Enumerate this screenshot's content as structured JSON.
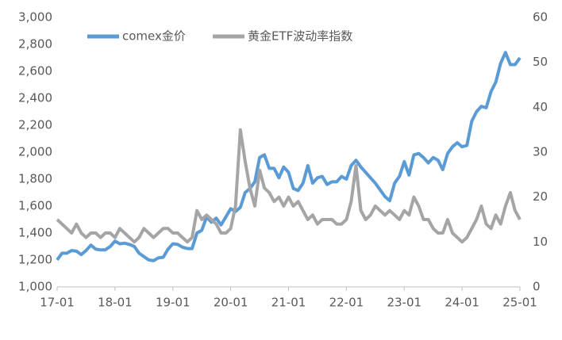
{
  "chart_data": {
    "type": "line",
    "x": [
      "17-01",
      "17-02",
      "17-03",
      "17-04",
      "17-05",
      "17-06",
      "17-07",
      "17-08",
      "17-09",
      "17-10",
      "17-11",
      "17-12",
      "18-01",
      "18-02",
      "18-03",
      "18-04",
      "18-05",
      "18-06",
      "18-07",
      "18-08",
      "18-09",
      "18-10",
      "18-11",
      "18-12",
      "19-01",
      "19-02",
      "19-03",
      "19-04",
      "19-05",
      "19-06",
      "19-07",
      "19-08",
      "19-09",
      "19-10",
      "19-11",
      "19-12",
      "20-01",
      "20-02",
      "20-03",
      "20-04",
      "20-05",
      "20-06",
      "20-07",
      "20-08",
      "20-09",
      "20-10",
      "20-11",
      "20-12",
      "21-01",
      "21-02",
      "21-03",
      "21-04",
      "21-05",
      "21-06",
      "21-07",
      "21-08",
      "21-09",
      "21-10",
      "21-11",
      "21-12",
      "22-01",
      "22-02",
      "22-03",
      "22-04",
      "22-05",
      "22-06",
      "22-07",
      "22-08",
      "22-09",
      "22-10",
      "22-11",
      "22-12",
      "23-01",
      "23-02",
      "23-03",
      "23-04",
      "23-05",
      "23-06",
      "23-07",
      "23-08",
      "23-09",
      "23-10",
      "23-11",
      "23-12",
      "24-01",
      "24-02",
      "24-03",
      "24-04",
      "24-05",
      "24-06",
      "24-07",
      "24-08",
      "24-09",
      "24-10",
      "24-11",
      "24-12",
      "25-01"
    ],
    "xticks": [
      0,
      12,
      24,
      36,
      48,
      60,
      72,
      84,
      96
    ],
    "series": [
      {
        "name": "comex金价",
        "color": "#5b9bd5",
        "axis": "y",
        "values": [
          1200,
          1250,
          1250,
          1270,
          1265,
          1240,
          1270,
          1310,
          1280,
          1275,
          1275,
          1300,
          1340,
          1320,
          1325,
          1315,
          1300,
          1250,
          1225,
          1200,
          1195,
          1215,
          1220,
          1280,
          1320,
          1315,
          1295,
          1285,
          1285,
          1400,
          1420,
          1520,
          1480,
          1510,
          1460,
          1520,
          1580,
          1560,
          1590,
          1700,
          1730,
          1780,
          1960,
          1980,
          1880,
          1880,
          1810,
          1890,
          1850,
          1730,
          1715,
          1770,
          1900,
          1770,
          1810,
          1820,
          1760,
          1780,
          1780,
          1820,
          1800,
          1900,
          1940,
          1890,
          1850,
          1810,
          1770,
          1720,
          1670,
          1640,
          1770,
          1820,
          1930,
          1830,
          1980,
          1990,
          1960,
          1920,
          1960,
          1940,
          1870,
          1990,
          2040,
          2070,
          2040,
          2050,
          2230,
          2300,
          2340,
          2330,
          2450,
          2520,
          2660,
          2740,
          2650,
          2650,
          2700
        ]
      },
      {
        "name": "黄金ETF波动率指数",
        "color": "#a5a5a5",
        "axis": "y2",
        "values": [
          15,
          14,
          13,
          12,
          14,
          12,
          11,
          12,
          12,
          11,
          12,
          12,
          11,
          13,
          12,
          11,
          10,
          11,
          13,
          12,
          11,
          12,
          13,
          13,
          12,
          12,
          11,
          10,
          11,
          17,
          15,
          16,
          15,
          14,
          12,
          12,
          13,
          18,
          35,
          28,
          22,
          18,
          26,
          22,
          21,
          19,
          20,
          18,
          20,
          18,
          19,
          17,
          15,
          16,
          14,
          15,
          15,
          15,
          14,
          14,
          15,
          19,
          27,
          17,
          15,
          16,
          18,
          17,
          16,
          17,
          16,
          15,
          17,
          16,
          20,
          18,
          15,
          15,
          13,
          12,
          12,
          15,
          12,
          11,
          10,
          11,
          13,
          15,
          18,
          14,
          13,
          16,
          14,
          18,
          21,
          17,
          15
        ]
      }
    ],
    "ylim": [
      1000,
      3000
    ],
    "yticks": [
      {
        "value": 1000,
        "label": "1,000"
      },
      {
        "value": 1200,
        "label": "1,200"
      },
      {
        "value": 1400,
        "label": "1,400"
      },
      {
        "value": 1600,
        "label": "1,600"
      },
      {
        "value": 1800,
        "label": "1,800"
      },
      {
        "value": 2000,
        "label": "2,000"
      },
      {
        "value": 2200,
        "label": "2,200"
      },
      {
        "value": 2400,
        "label": "2,400"
      },
      {
        "value": 2600,
        "label": "2,600"
      },
      {
        "value": 2800,
        "label": "2,800"
      },
      {
        "value": 3000,
        "label": "3,000"
      }
    ],
    "y2lim": [
      0,
      60
    ],
    "y2ticks": [
      0,
      10,
      20,
      30,
      40,
      50,
      60
    ],
    "legend": "top"
  }
}
